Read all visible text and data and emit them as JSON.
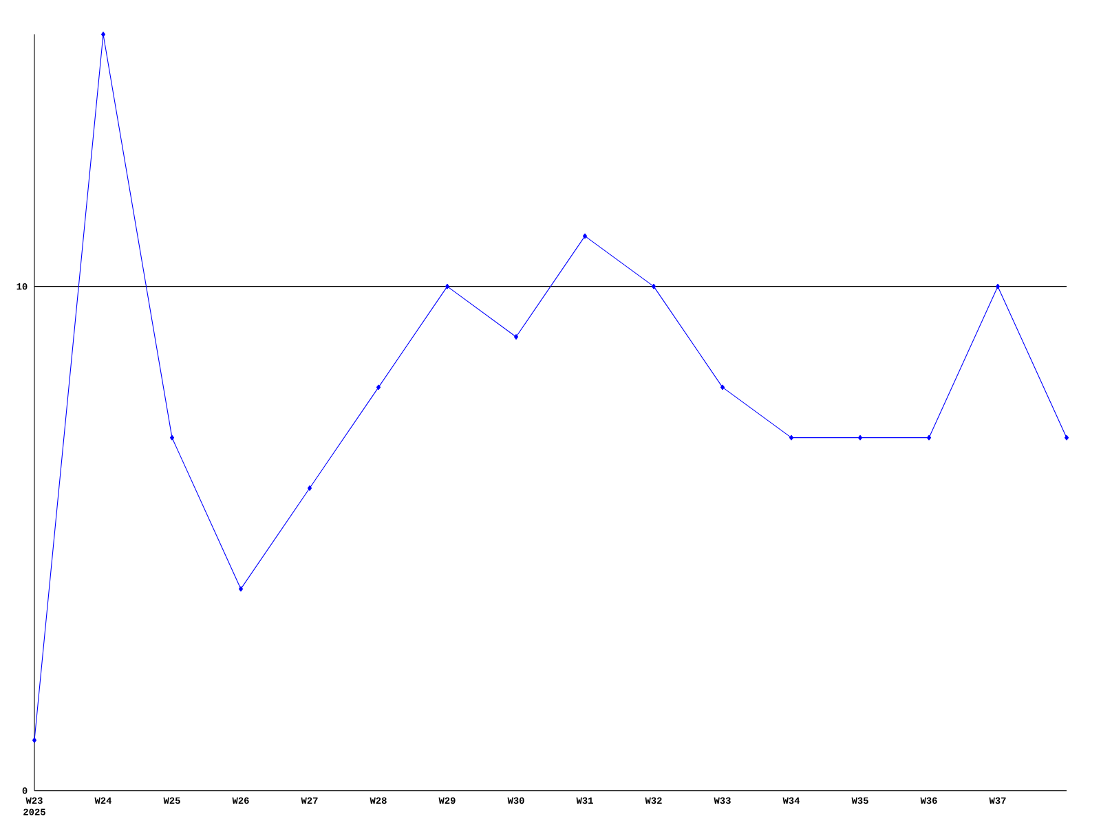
{
  "chart_data": {
    "type": "line",
    "categories": [
      "W23",
      "W24",
      "W25",
      "W26",
      "W27",
      "W28",
      "W29",
      "W30",
      "W31",
      "W32",
      "W33",
      "W34",
      "W35",
      "W36",
      "W37",
      null
    ],
    "series": [
      {
        "color": "#0000ff",
        "values": [
          1,
          15,
          7,
          4,
          6,
          8,
          10,
          9,
          11,
          10,
          8,
          7,
          7,
          7,
          10,
          7
        ]
      }
    ],
    "ylim": [
      0,
      15
    ],
    "yticks": [
      0,
      10
    ],
    "grid": "y",
    "marker": "diamond",
    "line_style": "solid",
    "annotations": [
      "2025"
    ]
  }
}
